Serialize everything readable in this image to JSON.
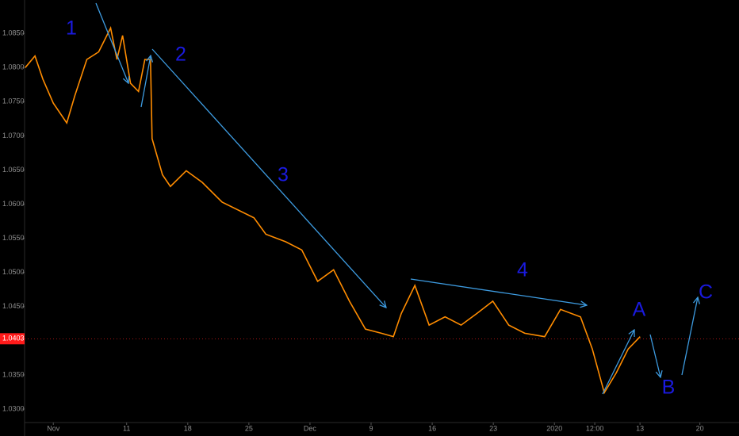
{
  "chart_data": {
    "type": "line",
    "xlim": [
      -2.35,
      56.1
    ],
    "ylim": [
      1.0278,
      1.0899
    ],
    "xticks": [
      {
        "value": 0,
        "label": "Nov"
      },
      {
        "value": 6,
        "label": "11"
      },
      {
        "value": 11,
        "label": "18"
      },
      {
        "value": 16,
        "label": "25"
      },
      {
        "value": 21,
        "label": "Dec"
      },
      {
        "value": 26,
        "label": "9"
      },
      {
        "value": 31,
        "label": "16"
      },
      {
        "value": 36,
        "label": "23"
      },
      {
        "value": 41,
        "label": "2020"
      },
      {
        "value": 44.3,
        "label": "12:00"
      },
      {
        "value": 48,
        "label": "13"
      },
      {
        "value": 52.9,
        "label": "20"
      }
    ],
    "yticks": [
      {
        "value": 1.085,
        "label": "1.0850"
      },
      {
        "value": 1.08,
        "label": "1.0800"
      },
      {
        "value": 1.075,
        "label": "1.0750"
      },
      {
        "value": 1.07,
        "label": "1.0700"
      },
      {
        "value": 1.065,
        "label": "1.0650"
      },
      {
        "value": 1.06,
        "label": "1.0600"
      },
      {
        "value": 1.055,
        "label": "1.0550"
      },
      {
        "value": 1.05,
        "label": "1.0500"
      },
      {
        "value": 1.045,
        "label": "1.0450"
      },
      {
        "value": 1.04,
        "label": "1.0400"
      },
      {
        "value": 1.035,
        "label": "1.0350"
      },
      {
        "value": 1.03,
        "label": "1.0300"
      }
    ],
    "last_price": {
      "value": 1.0403,
      "label": "1.0403"
    },
    "series": [
      {
        "color": "#ff8c00",
        "x": [
          -2.3,
          -1.5,
          -0.85,
          0,
          1.1,
          1.76,
          2.74,
          3.71,
          4.69,
          5.21,
          5.67,
          6.32,
          6.97,
          7.49,
          7.95,
          8.08,
          8.93,
          9.58,
          10.88,
          12.18,
          13.81,
          16.42,
          17.39,
          19.02,
          20.33,
          21.63,
          22.93,
          24.23,
          25.54,
          26.84,
          27.82,
          28.47,
          29.58,
          30.75,
          32.05,
          33.36,
          34.66,
          35.96,
          37.26,
          38.57,
          40.2,
          41.5,
          43.13,
          44.1,
          45.08,
          46.06,
          47.04,
          48.01
        ],
        "values": [
          1.08,
          1.0817,
          1.0783,
          1.0748,
          1.0719,
          1.0759,
          1.0812,
          1.0823,
          1.0858,
          1.0812,
          1.0847,
          1.0777,
          1.0765,
          1.0812,
          1.0812,
          1.0696,
          1.0643,
          1.0626,
          1.0649,
          1.0632,
          1.0603,
          1.058,
          1.0556,
          1.0545,
          1.0533,
          1.0487,
          1.0504,
          1.0458,
          1.0417,
          1.0411,
          1.0406,
          1.044,
          1.0481,
          1.0423,
          1.0435,
          1.0423,
          1.044,
          1.0458,
          1.0423,
          1.0411,
          1.0406,
          1.0446,
          1.0435,
          1.0388,
          1.0324,
          1.0353,
          1.0388,
          1.0406
        ]
      }
    ],
    "annotations": [
      "1",
      "2",
      "3",
      "4",
      "A",
      "B",
      "C"
    ]
  }
}
